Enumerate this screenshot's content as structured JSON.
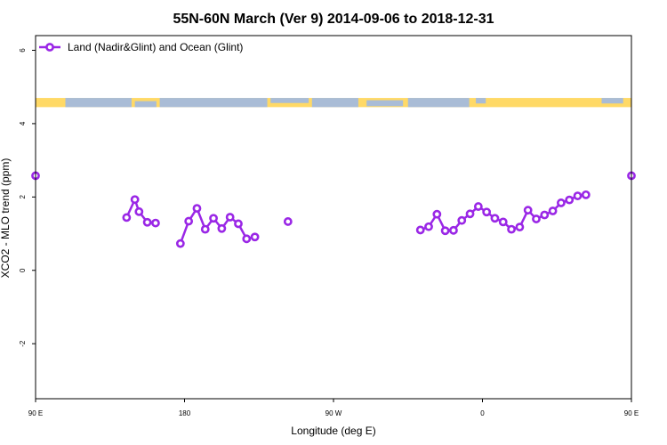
{
  "chart_data": {
    "type": "line",
    "title": "55N-60N March (Ver 9)   2014-09-06 to 2018-12-31",
    "xlabel": "Longitude (deg E)",
    "ylabel": "XCO2 - MLO trend (ppm)",
    "xlim": [
      90,
      450
    ],
    "ylim": [
      -3.5,
      6.4
    ],
    "x_ticks": [
      {
        "value": 90,
        "label": "90 E"
      },
      {
        "value": 180,
        "label": "180"
      },
      {
        "value": 270,
        "label": "90 W"
      },
      {
        "value": 360,
        "label": "0"
      },
      {
        "value": 450,
        "label": "90 E"
      },
      {
        "value": 540,
        "label": "180"
      }
    ],
    "y_ticks": [
      {
        "value": -2,
        "label": "-2"
      },
      {
        "value": 0,
        "label": "0"
      },
      {
        "value": 2,
        "label": "2"
      },
      {
        "value": 4,
        "label": "4"
      },
      {
        "value": 6,
        "label": "6"
      }
    ],
    "legend": {
      "position": "top-left",
      "entries": [
        "Land (Nadir&Glint) and Ocean (Glint)"
      ]
    },
    "colors": {
      "series": "#9a27e6",
      "land": "#ffd966",
      "ocean": "#a9bcd6"
    },
    "series": [
      {
        "name": "Land (Nadir&Glint) and Ocean (Glint)",
        "points": [
          [
            90,
            2.58
          ],
          [
            145,
            1.44
          ],
          [
            150,
            1.93
          ],
          [
            152.5,
            1.6
          ],
          [
            157.5,
            1.31
          ],
          [
            162.5,
            1.29
          ],
          [
            177.5,
            0.73
          ],
          [
            182.5,
            1.34
          ],
          [
            187.5,
            1.69
          ],
          [
            192.5,
            1.12
          ],
          [
            197.5,
            1.42
          ],
          [
            202.5,
            1.14
          ],
          [
            207.5,
            1.45
          ],
          [
            212.5,
            1.27
          ],
          [
            217.5,
            0.86
          ],
          [
            222.5,
            0.91
          ],
          [
            242.5,
            1.33
          ],
          [
            322.5,
            1.1
          ],
          [
            327.5,
            1.19
          ],
          [
            332.5,
            1.53
          ],
          [
            337.5,
            1.08
          ],
          [
            342.5,
            1.09
          ],
          [
            347.5,
            1.36
          ],
          [
            352.5,
            1.54
          ],
          [
            357.5,
            1.74
          ],
          [
            362.5,
            1.59
          ],
          [
            367.5,
            1.42
          ],
          [
            372.5,
            1.32
          ],
          [
            377.5,
            1.12
          ],
          [
            382.5,
            1.18
          ],
          [
            387.5,
            1.64
          ],
          [
            392.5,
            1.4
          ],
          [
            397.5,
            1.51
          ],
          [
            402.5,
            1.62
          ],
          [
            407.5,
            1.84
          ],
          [
            412.5,
            1.92
          ],
          [
            417.5,
            2.03
          ],
          [
            422.5,
            2.06
          ],
          [
            450,
            2.58
          ]
        ]
      }
    ]
  }
}
